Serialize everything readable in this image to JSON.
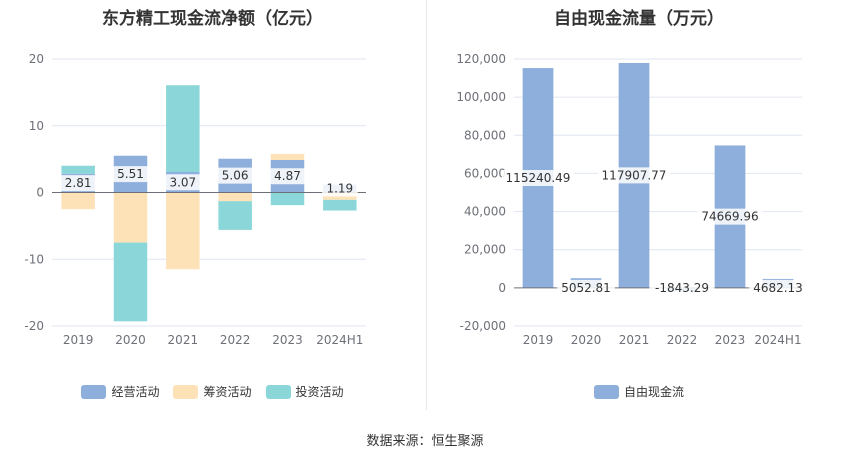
{
  "source_text": "数据来源：恒生聚源",
  "chart_data": [
    {
      "type": "bar",
      "stacked": true,
      "title": "东方精工现金流净额（亿元）",
      "categories": [
        "2019",
        "2020",
        "2021",
        "2022",
        "2023",
        "2024H1"
      ],
      "ylim": [
        -20,
        20
      ],
      "yticks": [
        -20,
        -10,
        0,
        10,
        20
      ],
      "legend_position": "bottom",
      "series": [
        {
          "name": "经营活动",
          "color": "#8eaedb",
          "values": [
            2.81,
            5.51,
            3.07,
            5.06,
            4.87,
            1.19
          ],
          "labels": [
            "2.81",
            "5.51",
            "3.07",
            "5.06",
            "4.87",
            "1.19"
          ]
        },
        {
          "name": "筹资活动",
          "color": "#fde2b8",
          "values": [
            -2.5,
            -7.5,
            -11.5,
            -1.3,
            0.9,
            -1.1
          ]
        },
        {
          "name": "投资活动",
          "color": "#8ad6d8",
          "values": [
            1.2,
            -11.8,
            13.0,
            -4.3,
            -1.9,
            -1.6
          ]
        }
      ]
    },
    {
      "type": "bar",
      "title": "自由现金流量（万元）",
      "categories": [
        "2019",
        "2020",
        "2021",
        "2022",
        "2023",
        "2024H1"
      ],
      "ylim": [
        -20000,
        120000
      ],
      "yticks": [
        -20000,
        0,
        20000,
        40000,
        60000,
        80000,
        100000,
        120000
      ],
      "ytick_labels": [
        "-20,000",
        "0",
        "20,000",
        "40,000",
        "60,000",
        "80,000",
        "100,000",
        "120,000"
      ],
      "legend_position": "bottom",
      "series": [
        {
          "name": "自由现金流",
          "color": "#8eaedb",
          "values": [
            115240.49,
            5052.81,
            117907.77,
            -1843.29,
            74669.96,
            4682.13
          ],
          "labels": [
            "115240.49",
            "5052.81",
            "117907.77",
            "-1843.29",
            "74669.96",
            "4682.13"
          ]
        }
      ]
    }
  ]
}
